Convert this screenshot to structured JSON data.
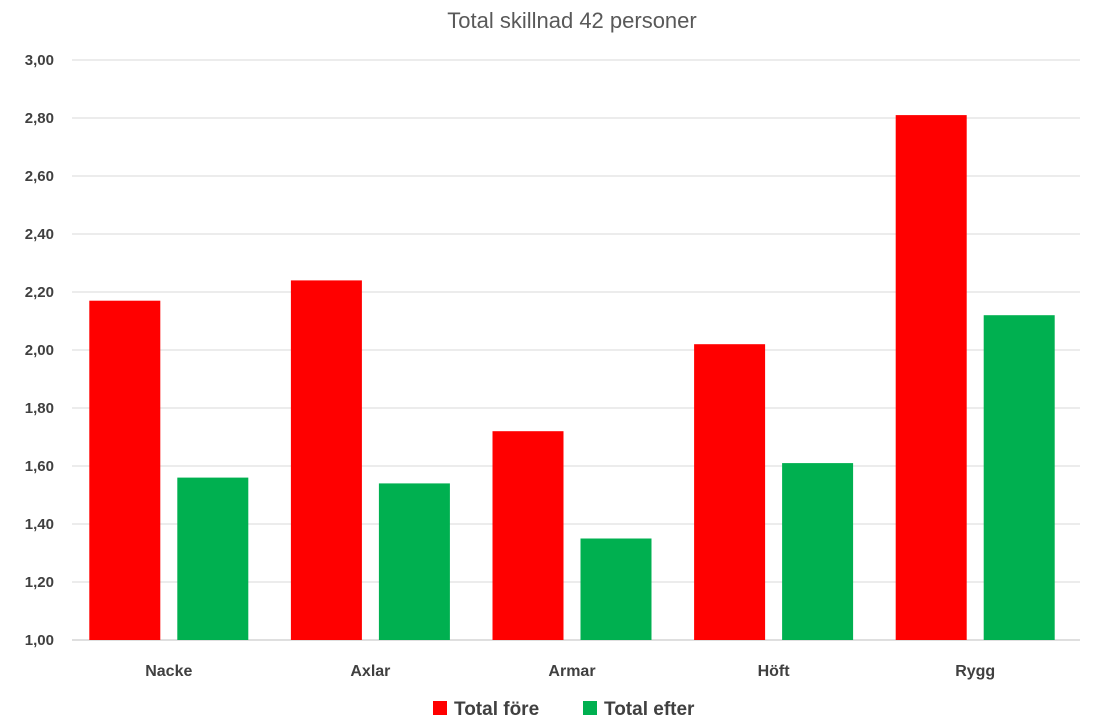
{
  "chart_data": {
    "type": "bar",
    "title": "Total skillnad 42 personer",
    "xlabel": "",
    "ylabel": "",
    "categories": [
      "Nacke",
      "Axlar",
      "Armar",
      "Höft",
      "Rygg"
    ],
    "series": [
      {
        "name": "Total före",
        "color": "#ff0000",
        "values": [
          2.17,
          2.24,
          1.72,
          2.02,
          2.81
        ]
      },
      {
        "name": "Total efter",
        "color": "#00b050",
        "values": [
          1.56,
          1.54,
          1.35,
          1.61,
          2.12
        ]
      }
    ],
    "ylim": [
      1.0,
      3.0
    ],
    "yticks": [
      "1,00",
      "1,20",
      "1,40",
      "1,60",
      "1,80",
      "2,00",
      "2,20",
      "2,40",
      "2,60",
      "2,80",
      "3,00"
    ],
    "grid": true,
    "legend_position": "bottom"
  }
}
